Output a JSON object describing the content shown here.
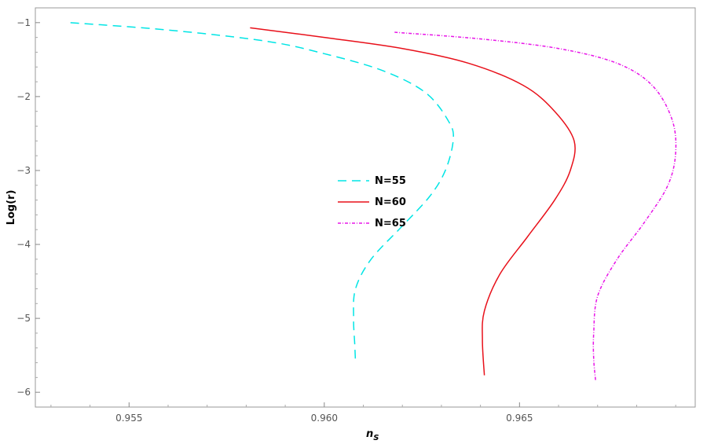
{
  "chart_data": {
    "type": "line",
    "xlabel_main": "n",
    "xlabel_sub": "S",
    "ylabel": "Log(r)",
    "xlim": [
      0.9526,
      0.9695
    ],
    "ylim": [
      -6.2,
      -0.8
    ],
    "x_ticks": [
      0.955,
      0.96,
      0.965
    ],
    "x_tick_labels": [
      "0.955",
      "0.960",
      "0.965"
    ],
    "y_ticks": [
      -1,
      -2,
      -3,
      -4,
      -5,
      -6
    ],
    "y_tick_labels": [
      "−1",
      "−2",
      "−3",
      "−4",
      "−5",
      "−6"
    ],
    "grid": false,
    "legend_position": "center",
    "series": [
      {
        "name": "N=55",
        "color": "#00e5e5",
        "dash": "dashed",
        "points": [
          [
            0.9535,
            -1.0
          ],
          [
            0.956,
            -1.1
          ],
          [
            0.9585,
            -1.25
          ],
          [
            0.96,
            -1.42
          ],
          [
            0.9615,
            -1.65
          ],
          [
            0.9626,
            -1.95
          ],
          [
            0.9632,
            -2.35
          ],
          [
            0.9633,
            -2.6
          ],
          [
            0.9631,
            -3.0
          ],
          [
            0.9627,
            -3.35
          ],
          [
            0.962,
            -3.75
          ],
          [
            0.9612,
            -4.2
          ],
          [
            0.9608,
            -4.6
          ],
          [
            0.96075,
            -5.0
          ],
          [
            0.96078,
            -5.35
          ],
          [
            0.9608,
            -5.6
          ]
        ]
      },
      {
        "name": "N=60",
        "color": "#e8101a",
        "dash": "solid",
        "points": [
          [
            0.9581,
            -1.07
          ],
          [
            0.96,
            -1.2
          ],
          [
            0.962,
            -1.35
          ],
          [
            0.9637,
            -1.55
          ],
          [
            0.9651,
            -1.85
          ],
          [
            0.9659,
            -2.2
          ],
          [
            0.9664,
            -2.6
          ],
          [
            0.9663,
            -3.0
          ],
          [
            0.9659,
            -3.4
          ],
          [
            0.9652,
            -3.9
          ],
          [
            0.9645,
            -4.4
          ],
          [
            0.9641,
            -4.9
          ],
          [
            0.96405,
            -5.3
          ],
          [
            0.9641,
            -5.77
          ]
        ]
      },
      {
        "name": "N=65",
        "color": "#e815e8",
        "dash": "dashdot",
        "points": [
          [
            0.9618,
            -1.13
          ],
          [
            0.964,
            -1.22
          ],
          [
            0.966,
            -1.35
          ],
          [
            0.9675,
            -1.55
          ],
          [
            0.9684,
            -1.85
          ],
          [
            0.9689,
            -2.3
          ],
          [
            0.969,
            -2.75
          ],
          [
            0.9688,
            -3.2
          ],
          [
            0.9682,
            -3.7
          ],
          [
            0.9675,
            -4.2
          ],
          [
            0.967,
            -4.7
          ],
          [
            0.9669,
            -5.2
          ],
          [
            0.9669,
            -5.55
          ],
          [
            0.96695,
            -5.85
          ]
        ]
      }
    ]
  }
}
